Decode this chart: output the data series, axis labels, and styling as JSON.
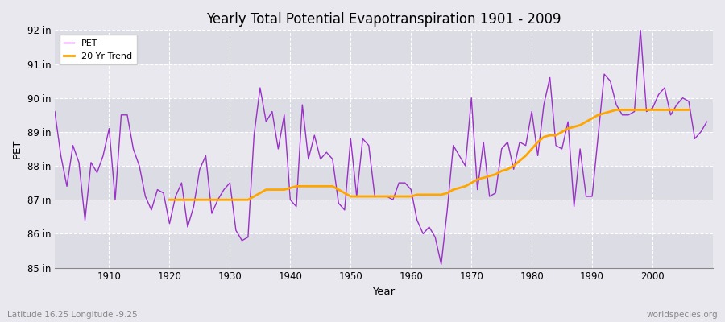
{
  "title": "Yearly Total Potential Evapotranspiration 1901 - 2009",
  "xlabel": "Year",
  "ylabel": "PET",
  "footnote_left": "Latitude 16.25 Longitude -9.25",
  "footnote_right": "worldspecies.org",
  "pet_color": "#9B30C8",
  "trend_color": "#FFA500",
  "bg_color": "#E8E8EE",
  "band_color_dark": "#DCDCE4",
  "band_color_light": "#E8E8EE",
  "grid_color": "#FFFFFF",
  "ylim": [
    85.0,
    92.0
  ],
  "ytick_labels": [
    "85 in",
    "86 in",
    "87 in",
    "88 in",
    "89 in",
    "90 in",
    "91 in",
    "92 in"
  ],
  "ytick_values": [
    85,
    86,
    87,
    88,
    89,
    90,
    91,
    92
  ],
  "xlim_min": 1901,
  "xlim_max": 2010,
  "xticks": [
    1910,
    1920,
    1930,
    1940,
    1950,
    1960,
    1970,
    1980,
    1990,
    2000
  ],
  "years": [
    1901,
    1902,
    1903,
    1904,
    1905,
    1906,
    1907,
    1908,
    1909,
    1910,
    1911,
    1912,
    1913,
    1914,
    1915,
    1916,
    1917,
    1918,
    1919,
    1920,
    1921,
    1922,
    1923,
    1924,
    1925,
    1926,
    1927,
    1928,
    1929,
    1930,
    1931,
    1932,
    1933,
    1934,
    1935,
    1936,
    1937,
    1938,
    1939,
    1940,
    1941,
    1942,
    1943,
    1944,
    1945,
    1946,
    1947,
    1948,
    1949,
    1950,
    1951,
    1952,
    1953,
    1954,
    1955,
    1956,
    1957,
    1958,
    1959,
    1960,
    1961,
    1962,
    1963,
    1964,
    1965,
    1966,
    1967,
    1968,
    1969,
    1970,
    1971,
    1972,
    1973,
    1974,
    1975,
    1976,
    1977,
    1978,
    1979,
    1980,
    1981,
    1982,
    1983,
    1984,
    1985,
    1986,
    1987,
    1988,
    1989,
    1990,
    1991,
    1992,
    1993,
    1994,
    1995,
    1996,
    1997,
    1998,
    1999,
    2000,
    2001,
    2002,
    2003,
    2004,
    2005,
    2006,
    2007,
    2008,
    2009
  ],
  "pet_values": [
    89.6,
    88.3,
    87.4,
    88.6,
    88.1,
    86.4,
    88.1,
    87.8,
    88.3,
    89.1,
    87.0,
    89.5,
    89.5,
    88.5,
    88.0,
    87.1,
    86.7,
    87.3,
    87.2,
    86.3,
    87.1,
    87.5,
    86.2,
    86.8,
    87.9,
    88.3,
    86.6,
    87.0,
    87.3,
    87.5,
    86.1,
    85.8,
    85.9,
    88.9,
    90.3,
    89.3,
    89.6,
    88.5,
    89.5,
    87.0,
    86.8,
    89.8,
    88.2,
    88.9,
    88.2,
    88.4,
    88.2,
    86.9,
    86.7,
    88.8,
    87.1,
    88.8,
    88.6,
    87.1,
    87.1,
    87.1,
    87.0,
    87.5,
    87.5,
    87.3,
    86.4,
    86.0,
    86.2,
    85.9,
    85.1,
    86.7,
    88.6,
    88.3,
    88.0,
    90.0,
    87.3,
    88.7,
    87.1,
    87.2,
    88.5,
    88.7,
    87.9,
    88.7,
    88.6,
    89.6,
    88.3,
    89.8,
    90.6,
    88.6,
    88.5,
    89.3,
    86.8,
    88.5,
    87.1,
    87.1,
    88.9,
    90.7,
    90.5,
    89.8,
    89.5,
    89.5,
    89.6,
    92.0,
    89.6,
    89.7,
    90.1,
    90.3,
    89.5,
    89.8,
    90.0,
    89.9,
    88.8,
    89.0,
    89.3
  ],
  "trend_values": [
    null,
    null,
    null,
    null,
    null,
    null,
    null,
    null,
    null,
    null,
    null,
    null,
    null,
    null,
    null,
    null,
    null,
    null,
    null,
    87.0,
    87.0,
    87.0,
    87.0,
    87.0,
    87.0,
    87.0,
    87.0,
    87.0,
    87.0,
    87.0,
    87.0,
    87.0,
    87.0,
    87.1,
    87.2,
    87.3,
    87.3,
    87.3,
    87.3,
    87.35,
    87.4,
    87.4,
    87.4,
    87.4,
    87.4,
    87.4,
    87.4,
    87.3,
    87.2,
    87.1,
    87.1,
    87.1,
    87.1,
    87.1,
    87.1,
    87.1,
    87.1,
    87.1,
    87.1,
    87.1,
    87.15,
    87.15,
    87.15,
    87.15,
    87.15,
    87.2,
    87.3,
    87.35,
    87.4,
    87.5,
    87.6,
    87.65,
    87.7,
    87.75,
    87.85,
    87.9,
    88.0,
    88.15,
    88.3,
    88.5,
    88.7,
    88.85,
    88.9,
    88.9,
    89.0,
    89.1,
    89.15,
    89.2,
    89.3,
    89.4,
    89.5,
    89.55,
    89.6,
    89.65,
    89.65,
    89.65,
    89.65,
    89.65,
    89.65,
    89.65,
    89.65,
    89.65,
    89.65,
    89.65,
    89.65,
    89.65
  ]
}
